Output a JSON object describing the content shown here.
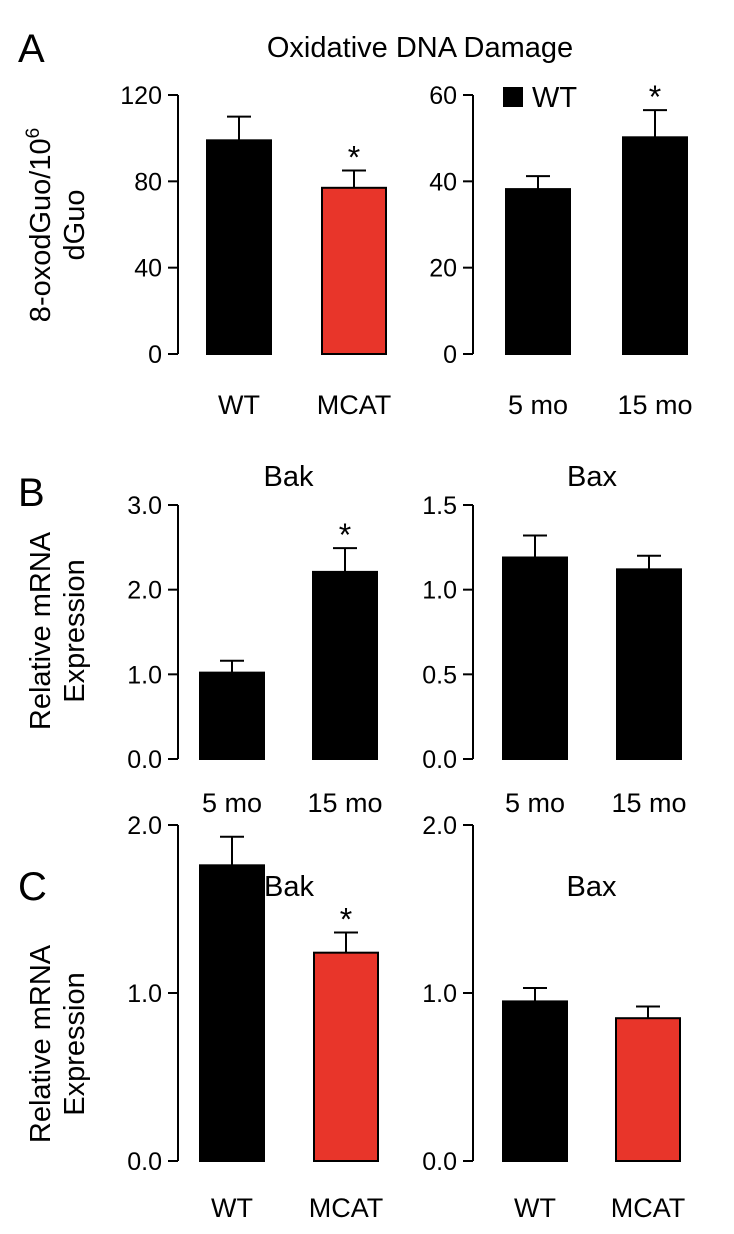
{
  "panels": [
    {
      "letter": "A",
      "title": "Oxidative DNA Damage",
      "ylabel": [
        "8-oxodGuo/10",
        "6",
        "dGuo"
      ]
    },
    {
      "letter": "B",
      "ylabel": [
        "Relative mRNA",
        "Expression"
      ]
    },
    {
      "letter": "C",
      "ylabel": [
        "Relative mRNA",
        "Expression"
      ]
    }
  ],
  "colors": {
    "wt": "#000000",
    "mcat": "#e8352a"
  },
  "chart_data": [
    {
      "id": "A-left",
      "type": "bar",
      "panel": "A",
      "title": "",
      "ylabel": "8-oxodGuo/10^6 dGuo",
      "ylim": [
        0,
        120
      ],
      "yticks": [
        "0",
        "40",
        "80",
        "120"
      ],
      "categories": [
        "WT",
        "MCAT"
      ],
      "values": [
        99,
        77
      ],
      "errors": [
        11,
        8
      ],
      "colors": [
        "#000000",
        "#e8352a"
      ],
      "significance": [
        "",
        "*"
      ]
    },
    {
      "id": "A-right",
      "type": "bar",
      "panel": "A",
      "title": "",
      "ylim": [
        0,
        60
      ],
      "yticks": [
        "0",
        "20",
        "40",
        "60"
      ],
      "categories": [
        "5 mo",
        "15 mo"
      ],
      "values": [
        38.2,
        50.2
      ],
      "errors": [
        3.0,
        6.3
      ],
      "colors": [
        "#000000",
        "#000000"
      ],
      "significance": [
        "",
        "*"
      ],
      "legend": [
        {
          "name": "WT",
          "color": "#000000"
        }
      ],
      "legend_position": "top-left"
    },
    {
      "id": "B-left",
      "type": "bar",
      "panel": "B",
      "title": "Bak",
      "ylabel": "Relative mRNA Expression",
      "ylim": [
        0,
        3.0
      ],
      "yticks": [
        "0.0",
        "1.0",
        "2.0",
        "3.0"
      ],
      "categories": [
        "5 mo",
        "15 mo"
      ],
      "values": [
        1.02,
        2.21
      ],
      "errors": [
        0.14,
        0.28
      ],
      "colors": [
        "#000000",
        "#000000"
      ],
      "significance": [
        "",
        "*"
      ]
    },
    {
      "id": "B-right",
      "type": "bar",
      "panel": "B",
      "title": "Bax",
      "ylim": [
        0,
        1.5
      ],
      "yticks": [
        "0.0",
        "0.5",
        "1.0",
        "1.5"
      ],
      "categories": [
        "5 mo",
        "15 mo"
      ],
      "values": [
        1.19,
        1.12
      ],
      "errors": [
        0.13,
        0.08
      ],
      "colors": [
        "#000000",
        "#000000"
      ],
      "significance": [
        "",
        ""
      ]
    },
    {
      "id": "C-left",
      "type": "bar",
      "panel": "C",
      "title": "Bak",
      "ylabel": "Relative mRNA Expression",
      "ylim": [
        0,
        2.0
      ],
      "yticks": [
        "0.0",
        "1.0",
        "2.0"
      ],
      "categories": [
        "WT",
        "MCAT"
      ],
      "values": [
        1.76,
        1.24
      ],
      "errors": [
        0.17,
        0.12
      ],
      "colors": [
        "#000000",
        "#e8352a"
      ],
      "significance": [
        "",
        "*"
      ]
    },
    {
      "id": "C-right",
      "type": "bar",
      "panel": "C",
      "title": "Bax",
      "ylim": [
        0,
        2.0
      ],
      "yticks": [
        "0.0",
        "1.0",
        "2.0"
      ],
      "categories": [
        "WT",
        "MCAT"
      ],
      "values": [
        0.95,
        0.85
      ],
      "errors": [
        0.08,
        0.07
      ],
      "colors": [
        "#000000",
        "#e8352a"
      ],
      "significance": [
        "",
        ""
      ]
    }
  ]
}
